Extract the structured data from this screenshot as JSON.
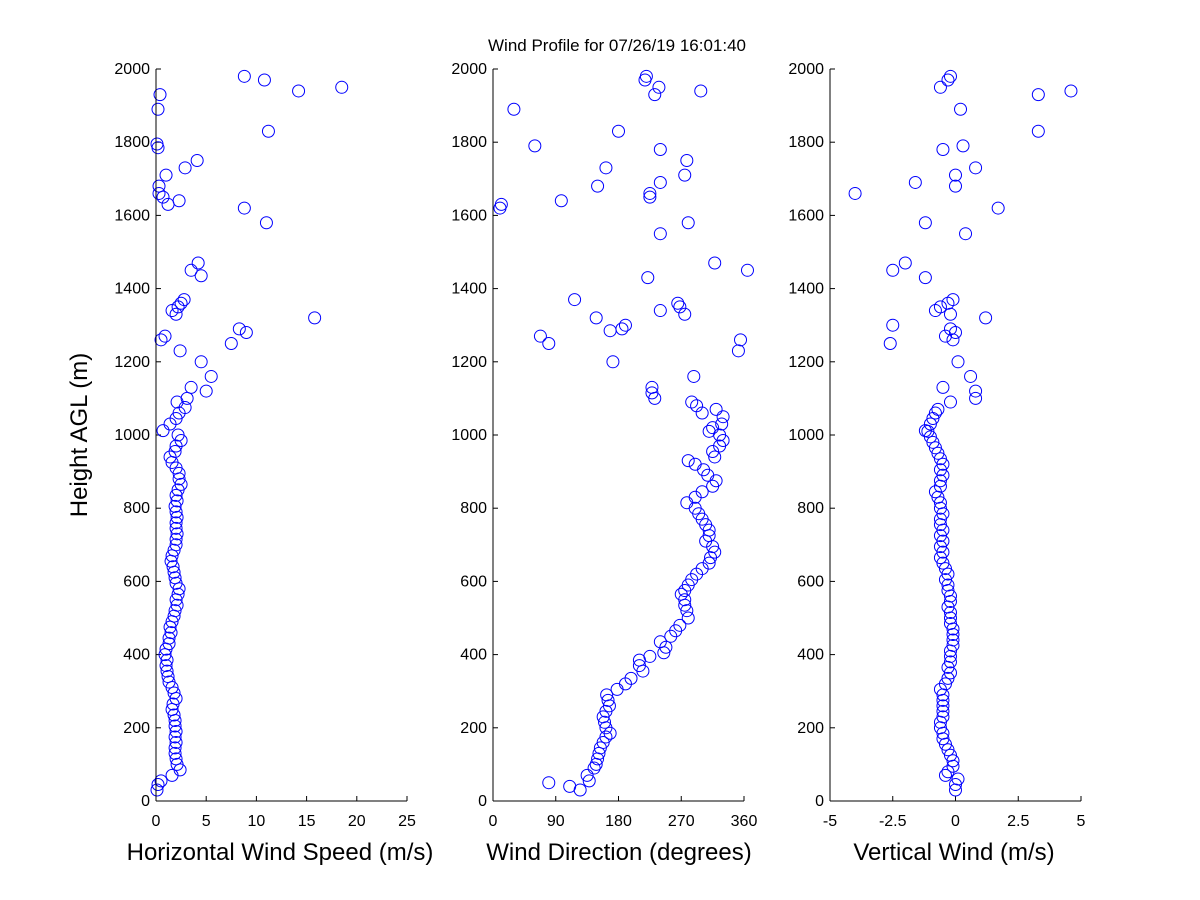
{
  "title": "Wind Profile for  07/26/19 16:01:40",
  "colors": {
    "marker": "#0000ff",
    "axis": "#000000",
    "background": "#ffffff"
  },
  "chart_data": [
    {
      "type": "scatter",
      "xlabel": "Horizontal Wind Speed (m/s)",
      "ylabel": "Height AGL (m)",
      "xlim": [
        0,
        25
      ],
      "ylim": [
        0,
        2000
      ],
      "xticks": [
        "0",
        "5",
        "10",
        "15",
        "20",
        "25"
      ],
      "xtick_values": [
        0,
        5,
        10,
        15,
        20,
        25
      ],
      "yticks": [
        "0",
        "200",
        "400",
        "600",
        "800",
        "1000",
        "1200",
        "1400",
        "1600",
        "1800",
        "2000"
      ],
      "ytick_values": [
        0,
        200,
        400,
        600,
        800,
        1000,
        1200,
        1400,
        1600,
        1800,
        2000
      ],
      "grid": false,
      "marker": "open-circle",
      "points": [
        [
          0.1,
          30
        ],
        [
          0.2,
          45
        ],
        [
          0.5,
          55
        ],
        [
          1.6,
          70
        ],
        [
          2.4,
          85
        ],
        [
          2.1,
          100
        ],
        [
          2.0,
          115
        ],
        [
          1.9,
          130
        ],
        [
          1.9,
          145
        ],
        [
          2.0,
          160
        ],
        [
          1.9,
          175
        ],
        [
          2.0,
          190
        ],
        [
          1.9,
          205
        ],
        [
          1.9,
          220
        ],
        [
          1.8,
          235
        ],
        [
          1.6,
          250
        ],
        [
          1.7,
          265
        ],
        [
          2.0,
          280
        ],
        [
          1.8,
          295
        ],
        [
          1.6,
          310
        ],
        [
          1.3,
          325
        ],
        [
          1.2,
          340
        ],
        [
          1.1,
          355
        ],
        [
          1.0,
          370
        ],
        [
          1.1,
          385
        ],
        [
          0.9,
          400
        ],
        [
          1.0,
          415
        ],
        [
          1.3,
          430
        ],
        [
          1.3,
          445
        ],
        [
          1.5,
          460
        ],
        [
          1.4,
          475
        ],
        [
          1.6,
          490
        ],
        [
          1.8,
          505
        ],
        [
          1.9,
          520
        ],
        [
          2.1,
          535
        ],
        [
          2.0,
          550
        ],
        [
          2.2,
          565
        ],
        [
          2.3,
          580
        ],
        [
          2.0,
          595
        ],
        [
          1.9,
          610
        ],
        [
          1.8,
          625
        ],
        [
          1.7,
          640
        ],
        [
          1.5,
          655
        ],
        [
          1.6,
          670
        ],
        [
          1.8,
          685
        ],
        [
          2.0,
          700
        ],
        [
          2.0,
          715
        ],
        [
          2.1,
          730
        ],
        [
          2.0,
          745
        ],
        [
          2.0,
          760
        ],
        [
          2.1,
          775
        ],
        [
          2.0,
          790
        ],
        [
          1.9,
          805
        ],
        [
          2.1,
          820
        ],
        [
          2.0,
          835
        ],
        [
          2.2,
          850
        ],
        [
          2.5,
          865
        ],
        [
          2.3,
          880
        ],
        [
          2.3,
          895
        ],
        [
          2.0,
          910
        ],
        [
          1.6,
          925
        ],
        [
          1.4,
          940
        ],
        [
          1.9,
          955
        ],
        [
          2.0,
          970
        ],
        [
          2.5,
          985
        ],
        [
          2.2,
          1000
        ],
        [
          0.7,
          1012
        ],
        [
          1.4,
          1030
        ],
        [
          2.0,
          1045
        ],
        [
          2.3,
          1060
        ],
        [
          2.9,
          1075
        ],
        [
          2.1,
          1090
        ],
        [
          3.1,
          1100
        ],
        [
          5.0,
          1120
        ],
        [
          3.5,
          1130
        ],
        [
          5.5,
          1160
        ],
        [
          4.5,
          1200
        ],
        [
          2.4,
          1230
        ],
        [
          7.5,
          1250
        ],
        [
          0.5,
          1260
        ],
        [
          0.9,
          1270
        ],
        [
          9.0,
          1280
        ],
        [
          8.3,
          1290
        ],
        [
          15.8,
          1320
        ],
        [
          2.0,
          1330
        ],
        [
          1.6,
          1340
        ],
        [
          2.2,
          1350
        ],
        [
          2.5,
          1360
        ],
        [
          2.8,
          1370
        ],
        [
          4.5,
          1435
        ],
        [
          3.5,
          1450
        ],
        [
          4.2,
          1470
        ],
        [
          11.0,
          1580
        ],
        [
          8.8,
          1620
        ],
        [
          2.3,
          1640
        ],
        [
          1.2,
          1630
        ],
        [
          0.7,
          1650
        ],
        [
          0.3,
          1660
        ],
        [
          0.3,
          1680
        ],
        [
          1.0,
          1710
        ],
        [
          2.9,
          1730
        ],
        [
          4.1,
          1750
        ],
        [
          0.2,
          1785
        ],
        [
          0.1,
          1795
        ],
        [
          11.2,
          1830
        ],
        [
          0.2,
          1890
        ],
        [
          0.4,
          1930
        ],
        [
          14.2,
          1940
        ],
        [
          18.5,
          1950
        ],
        [
          10.8,
          1970
        ],
        [
          8.8,
          1980
        ]
      ]
    },
    {
      "type": "scatter",
      "xlabel": "Wind Direction (degrees)",
      "ylabel": "",
      "xlim": [
        0,
        360
      ],
      "ylim": [
        0,
        2000
      ],
      "xticks": [
        "0",
        "90",
        "180",
        "270",
        "360"
      ],
      "xtick_values": [
        0,
        90,
        180,
        270,
        360
      ],
      "yticks": [
        "0",
        "200",
        "400",
        "600",
        "800",
        "1000",
        "1200",
        "1400",
        "1600",
        "1800",
        "2000"
      ],
      "ytick_values": [
        0,
        200,
        400,
        600,
        800,
        1000,
        1200,
        1400,
        1600,
        1800,
        2000
      ],
      "grid": false,
      "marker": "open-circle",
      "points": [
        [
          125,
          30
        ],
        [
          110,
          40
        ],
        [
          80,
          50
        ],
        [
          138,
          55
        ],
        [
          135,
          70
        ],
        [
          145,
          90
        ],
        [
          148,
          100
        ],
        [
          150,
          115
        ],
        [
          152,
          130
        ],
        [
          154,
          145
        ],
        [
          158,
          160
        ],
        [
          162,
          175
        ],
        [
          168,
          185
        ],
        [
          162,
          200
        ],
        [
          160,
          215
        ],
        [
          158,
          230
        ],
        [
          162,
          245
        ],
        [
          167,
          260
        ],
        [
          165,
          275
        ],
        [
          163,
          290
        ],
        [
          178,
          305
        ],
        [
          190,
          320
        ],
        [
          198,
          335
        ],
        [
          215,
          355
        ],
        [
          210,
          370
        ],
        [
          210,
          385
        ],
        [
          225,
          395
        ],
        [
          245,
          405
        ],
        [
          248,
          420
        ],
        [
          240,
          435
        ],
        [
          255,
          450
        ],
        [
          262,
          465
        ],
        [
          268,
          480
        ],
        [
          280,
          500
        ],
        [
          278,
          520
        ],
        [
          275,
          535
        ],
        [
          275,
          550
        ],
        [
          270,
          565
        ],
        [
          275,
          575
        ],
        [
          280,
          590
        ],
        [
          285,
          605
        ],
        [
          292,
          620
        ],
        [
          300,
          635
        ],
        [
          310,
          650
        ],
        [
          312,
          665
        ],
        [
          318,
          680
        ],
        [
          315,
          695
        ],
        [
          305,
          710
        ],
        [
          310,
          725
        ],
        [
          310,
          740
        ],
        [
          305,
          755
        ],
        [
          300,
          770
        ],
        [
          295,
          785
        ],
        [
          290,
          800
        ],
        [
          278,
          815
        ],
        [
          290,
          830
        ],
        [
          300,
          845
        ],
        [
          315,
          860
        ],
        [
          320,
          875
        ],
        [
          308,
          890
        ],
        [
          302,
          905
        ],
        [
          290,
          920
        ],
        [
          280,
          930
        ],
        [
          318,
          940
        ],
        [
          315,
          955
        ],
        [
          325,
          970
        ],
        [
          330,
          985
        ],
        [
          325,
          1000
        ],
        [
          310,
          1010
        ],
        [
          315,
          1020
        ],
        [
          328,
          1030
        ],
        [
          330,
          1050
        ],
        [
          300,
          1060
        ],
        [
          320,
          1070
        ],
        [
          292,
          1080
        ],
        [
          285,
          1090
        ],
        [
          232,
          1100
        ],
        [
          228,
          1115
        ],
        [
          228,
          1130
        ],
        [
          288,
          1160
        ],
        [
          172,
          1200
        ],
        [
          352,
          1230
        ],
        [
          355,
          1260
        ],
        [
          80,
          1250
        ],
        [
          68,
          1270
        ],
        [
          185,
          1290
        ],
        [
          190,
          1300
        ],
        [
          168,
          1285
        ],
        [
          148,
          1320
        ],
        [
          275,
          1330
        ],
        [
          240,
          1340
        ],
        [
          268,
          1350
        ],
        [
          265,
          1360
        ],
        [
          117,
          1370
        ],
        [
          222,
          1430
        ],
        [
          318,
          1470
        ],
        [
          365,
          1450
        ],
        [
          280,
          1580
        ],
        [
          240,
          1550
        ],
        [
          10,
          1620
        ],
        [
          12,
          1630
        ],
        [
          98,
          1640
        ],
        [
          225,
          1650
        ],
        [
          225,
          1660
        ],
        [
          150,
          1680
        ],
        [
          240,
          1690
        ],
        [
          275,
          1710
        ],
        [
          162,
          1730
        ],
        [
          278,
          1750
        ],
        [
          240,
          1780
        ],
        [
          60,
          1790
        ],
        [
          180,
          1830
        ],
        [
          30,
          1890
        ],
        [
          298,
          1940
        ],
        [
          232,
          1930
        ],
        [
          238,
          1950
        ],
        [
          218,
          1970
        ],
        [
          220,
          1980
        ]
      ]
    },
    {
      "type": "scatter",
      "xlabel": "Vertical Wind (m/s)",
      "ylabel": "",
      "xlim": [
        -5,
        5
      ],
      "ylim": [
        0,
        2000
      ],
      "xticks": [
        "-5",
        "-2.5",
        "0",
        "2.5",
        "5"
      ],
      "xtick_values": [
        -5,
        -2.5,
        0,
        2.5,
        5
      ],
      "yticks": [
        "0",
        "200",
        "400",
        "600",
        "800",
        "1000",
        "1200",
        "1400",
        "1600",
        "1800",
        "2000"
      ],
      "ytick_values": [
        0,
        200,
        400,
        600,
        800,
        1000,
        1200,
        1400,
        1600,
        1800,
        2000
      ],
      "grid": false,
      "marker": "open-circle",
      "points": [
        [
          0.0,
          30
        ],
        [
          0.0,
          45
        ],
        [
          0.1,
          60
        ],
        [
          -0.4,
          70
        ],
        [
          -0.3,
          80
        ],
        [
          -0.1,
          95
        ],
        [
          -0.1,
          110
        ],
        [
          -0.2,
          125
        ],
        [
          -0.3,
          140
        ],
        [
          -0.4,
          155
        ],
        [
          -0.5,
          170
        ],
        [
          -0.5,
          185
        ],
        [
          -0.6,
          200
        ],
        [
          -0.6,
          215
        ],
        [
          -0.5,
          230
        ],
        [
          -0.5,
          245
        ],
        [
          -0.5,
          260
        ],
        [
          -0.5,
          275
        ],
        [
          -0.5,
          290
        ],
        [
          -0.6,
          305
        ],
        [
          -0.4,
          320
        ],
        [
          -0.3,
          335
        ],
        [
          -0.2,
          350
        ],
        [
          -0.3,
          365
        ],
        [
          -0.2,
          380
        ],
        [
          -0.2,
          395
        ],
        [
          -0.2,
          410
        ],
        [
          -0.1,
          425
        ],
        [
          -0.1,
          440
        ],
        [
          -0.1,
          455
        ],
        [
          -0.1,
          470
        ],
        [
          -0.2,
          485
        ],
        [
          -0.2,
          500
        ],
        [
          -0.2,
          515
        ],
        [
          -0.3,
          530
        ],
        [
          -0.2,
          545
        ],
        [
          -0.2,
          560
        ],
        [
          -0.3,
          575
        ],
        [
          -0.3,
          590
        ],
        [
          -0.4,
          605
        ],
        [
          -0.3,
          620
        ],
        [
          -0.4,
          635
        ],
        [
          -0.5,
          650
        ],
        [
          -0.6,
          665
        ],
        [
          -0.5,
          680
        ],
        [
          -0.6,
          695
        ],
        [
          -0.5,
          710
        ],
        [
          -0.6,
          725
        ],
        [
          -0.5,
          740
        ],
        [
          -0.6,
          755
        ],
        [
          -0.6,
          770
        ],
        [
          -0.5,
          785
        ],
        [
          -0.6,
          800
        ],
        [
          -0.6,
          815
        ],
        [
          -0.7,
          830
        ],
        [
          -0.8,
          845
        ],
        [
          -0.6,
          860
        ],
        [
          -0.6,
          875
        ],
        [
          -0.5,
          890
        ],
        [
          -0.6,
          905
        ],
        [
          -0.5,
          920
        ],
        [
          -0.6,
          935
        ],
        [
          -0.7,
          950
        ],
        [
          -0.8,
          965
        ],
        [
          -0.9,
          980
        ],
        [
          -1.0,
          995
        ],
        [
          -1.1,
          1010
        ],
        [
          -1.2,
          1012
        ],
        [
          -1.0,
          1030
        ],
        [
          -0.9,
          1045
        ],
        [
          -0.8,
          1060
        ],
        [
          -0.7,
          1070
        ],
        [
          -0.2,
          1090
        ],
        [
          0.8,
          1100
        ],
        [
          0.8,
          1120
        ],
        [
          -0.5,
          1130
        ],
        [
          0.6,
          1160
        ],
        [
          0.1,
          1200
        ],
        [
          -2.6,
          1250
        ],
        [
          -0.1,
          1260
        ],
        [
          -0.4,
          1270
        ],
        [
          0.0,
          1280
        ],
        [
          -0.2,
          1290
        ],
        [
          -2.5,
          1300
        ],
        [
          1.2,
          1320
        ],
        [
          -0.2,
          1330
        ],
        [
          -0.8,
          1340
        ],
        [
          -0.6,
          1350
        ],
        [
          -0.3,
          1360
        ],
        [
          -0.1,
          1370
        ],
        [
          -1.2,
          1430
        ],
        [
          -2.5,
          1450
        ],
        [
          -2.0,
          1470
        ],
        [
          -1.2,
          1580
        ],
        [
          0.4,
          1550
        ],
        [
          1.7,
          1620
        ],
        [
          -4.0,
          1660
        ],
        [
          0.0,
          1680
        ],
        [
          -1.6,
          1690
        ],
        [
          0.0,
          1710
        ],
        [
          0.8,
          1730
        ],
        [
          -0.5,
          1780
        ],
        [
          0.3,
          1790
        ],
        [
          3.3,
          1830
        ],
        [
          0.2,
          1890
        ],
        [
          3.3,
          1930
        ],
        [
          4.6,
          1940
        ],
        [
          -0.6,
          1950
        ],
        [
          -0.3,
          1970
        ],
        [
          -0.2,
          1980
        ]
      ]
    }
  ]
}
